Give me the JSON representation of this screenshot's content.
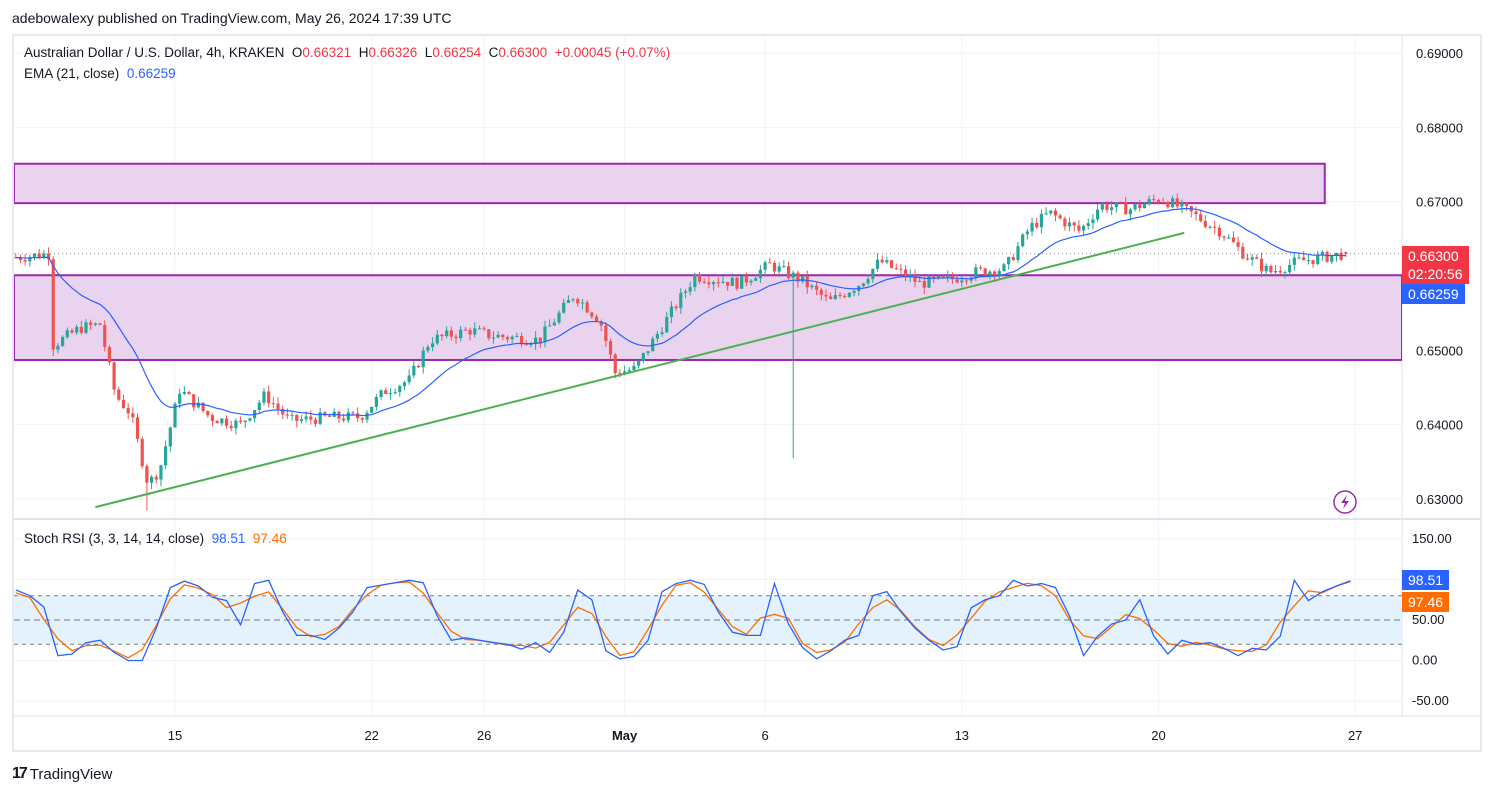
{
  "header": {
    "published": "adebowalexy published on TradingView.com, May 26, 2024 17:39 UTC"
  },
  "legend": {
    "symbol": "Australian Dollar / U.S. Dollar, 4h, KRAKEN",
    "o_label": "O",
    "o": "0.66321",
    "h_label": "H",
    "h": "0.66326",
    "l_label": "L",
    "l": "0.66254",
    "c_label": "C",
    "c": "0.66300",
    "change": "+0.00045 (+0.07%)",
    "ema_label": "EMA (21, close)",
    "ema_value": "0.66259",
    "stoch_label": "Stoch RSI (3, 3, 14, 14, close)",
    "k_value": "98.51",
    "d_value": "97.46"
  },
  "price_tags": {
    "last": "0.66300",
    "countdown": "02:20:56",
    "ema": "0.66259",
    "k": "98.51",
    "d": "97.46"
  },
  "colors": {
    "up": "#26a69a",
    "down": "#ef5350",
    "ema": "#2962ff",
    "zone_fill": "#e9d3ee",
    "zone_line": "#9c27b0",
    "trend": "#4caf50",
    "k": "#2962ff",
    "d": "#ff6d00",
    "band": "#e3f2fd"
  },
  "logo": {
    "text": "TradingView"
  },
  "chart_data": [
    {
      "type": "candlestick",
      "title": "Australian Dollar / U.S. Dollar, 4h, KRAKEN",
      "timeframe": "4h",
      "price_axis": {
        "ticks": [
          "0.69000",
          "0.68000",
          "0.67000",
          "0.66000",
          "0.65000",
          "0.64000",
          "0.63000"
        ],
        "range": [
          0.6255,
          0.6925
        ]
      },
      "time_axis": [
        {
          "label": "15",
          "date": "2024-04-15T00:00"
        },
        {
          "label": "22",
          "date": "2024-04-22T00:00"
        },
        {
          "label": "26",
          "date": "2024-04-26T00:00"
        },
        {
          "label": "May",
          "date": "2024-05-01T00:00"
        },
        {
          "label": "6",
          "date": "2024-05-06T00:00"
        },
        {
          "label": "13",
          "date": "2024-05-13T00:00"
        },
        {
          "label": "20",
          "date": "2024-05-20T00:00"
        },
        {
          "label": "27",
          "date": "2024-05-27T00:00"
        }
      ],
      "approx_close_path": [
        [
          "2024-04-09T08:00",
          0.6625
        ],
        [
          "2024-04-10T13:00",
          0.663
        ],
        [
          "2024-04-10T16:00",
          0.6507
        ],
        [
          "2024-04-11T15:00",
          0.653
        ],
        [
          "2024-04-12T08:00",
          0.6535
        ],
        [
          "2024-04-12T21:00",
          0.644
        ],
        [
          "2024-04-13T10:00",
          0.6415
        ],
        [
          "2024-04-14T01:00",
          0.632
        ],
        [
          "2024-04-14T11:00",
          0.634
        ],
        [
          "2024-04-15T04:00",
          0.6447
        ],
        [
          "2024-04-16T06:00",
          0.641
        ],
        [
          "2024-04-17T08:00",
          0.64
        ],
        [
          "2024-04-18T05:00",
          0.644
        ],
        [
          "2024-04-19T02:00",
          0.6405
        ],
        [
          "2024-04-20T12:00",
          0.641
        ],
        [
          "2024-04-21T14:00",
          0.641
        ],
        [
          "2024-04-22T11:00",
          0.6445
        ],
        [
          "2024-04-23T08:00",
          0.646
        ],
        [
          "2024-04-24T02:00",
          0.6514
        ],
        [
          "2024-04-25T12:00",
          0.6527
        ],
        [
          "2024-04-26T05:00",
          0.652
        ],
        [
          "2024-04-27T23:00",
          0.6514
        ],
        [
          "2024-04-29T05:00",
          0.6575
        ],
        [
          "2024-04-30T03:00",
          0.654
        ],
        [
          "2024-04-30T16:00",
          0.647
        ],
        [
          "2024-05-01T09:00",
          0.6475
        ],
        [
          "2024-05-02T06:00",
          0.6527
        ],
        [
          "2024-05-03T12:00",
          0.66
        ],
        [
          "2024-05-05T02:00",
          0.659
        ],
        [
          "2024-05-06T04:00",
          0.6615
        ],
        [
          "2024-05-07T06:00",
          0.6595
        ],
        [
          "2024-05-08T07:00",
          0.6565
        ],
        [
          "2024-05-09T09:00",
          0.659
        ],
        [
          "2024-05-10T02:00",
          0.662
        ],
        [
          "2024-05-11T12:00",
          0.659
        ],
        [
          "2024-05-12T14:00",
          0.6595
        ],
        [
          "2024-05-13T11:00",
          0.6605
        ],
        [
          "2024-05-14T13:00",
          0.661
        ],
        [
          "2024-05-15T10:00",
          0.6665
        ],
        [
          "2024-05-16T03:00",
          0.6685
        ],
        [
          "2024-05-17T05:00",
          0.666
        ],
        [
          "2024-05-17T22:00",
          0.6695
        ],
        [
          "2024-05-19T00:00",
          0.669
        ],
        [
          "2024-05-20T02:00",
          0.6705
        ],
        [
          "2024-05-21T03:00",
          0.6685
        ],
        [
          "2024-05-22T05:00",
          0.666
        ],
        [
          "2024-05-23T02:00",
          0.6628
        ],
        [
          "2024-05-23T23:00",
          0.6605
        ],
        [
          "2024-05-25T00:00",
          0.662
        ],
        [
          "2024-05-26T16:00",
          0.663
        ]
      ],
      "notable_wicks": [
        {
          "date": "2024-05-07T00:00",
          "low": 0.6355
        },
        {
          "date": "2024-04-14T00:00",
          "low": 0.6285
        }
      ],
      "last_candle": {
        "date": "2024-05-26T16:00",
        "open": 0.66321,
        "high": 0.66326,
        "low": 0.66254,
        "close": 0.663
      },
      "ema": {
        "period": 21,
        "last": 0.66259
      },
      "zones": [
        {
          "top": 0.6751,
          "bottom": 0.6698,
          "end": "2024-05-25T22:00"
        },
        {
          "top": 0.6601,
          "bottom": 0.6487
        }
      ],
      "trendline": {
        "from": [
          "2024-04-12T04:00",
          0.6289
        ],
        "to": [
          "2024-05-20T22:00",
          0.6658
        ]
      }
    },
    {
      "type": "line",
      "title": "Stoch RSI (3, 3, 14, 14, close)",
      "y_ticks": [
        "150.00",
        "50.00",
        "0.00",
        "-50.00"
      ],
      "range": [
        -60,
        160
      ],
      "bands": [
        20,
        50,
        80
      ],
      "k_start": "2024-04-09T08:00",
      "k_interval_hours": 12,
      "k": [
        87,
        80,
        66,
        6,
        8,
        22,
        25,
        10,
        0,
        0,
        40,
        90,
        98,
        92,
        78,
        74,
        44,
        95,
        99,
        60,
        31,
        31,
        26,
        40,
        60,
        90,
        93,
        96,
        99,
        96,
        55,
        25,
        28,
        25,
        22,
        20,
        14,
        22,
        10,
        35,
        87,
        75,
        12,
        2,
        5,
        25,
        85,
        95,
        99,
        94,
        60,
        35,
        31,
        31,
        95,
        45,
        16,
        2,
        12,
        25,
        31,
        80,
        85,
        60,
        40,
        25,
        13,
        17,
        65,
        75,
        80,
        99,
        92,
        95,
        90,
        55,
        6,
        30,
        45,
        50,
        75,
        30,
        8,
        25,
        20,
        22,
        15,
        6,
        15,
        13,
        30,
        99,
        74,
        85,
        92,
        98.51
      ],
      "d_last": 97.46
    }
  ]
}
